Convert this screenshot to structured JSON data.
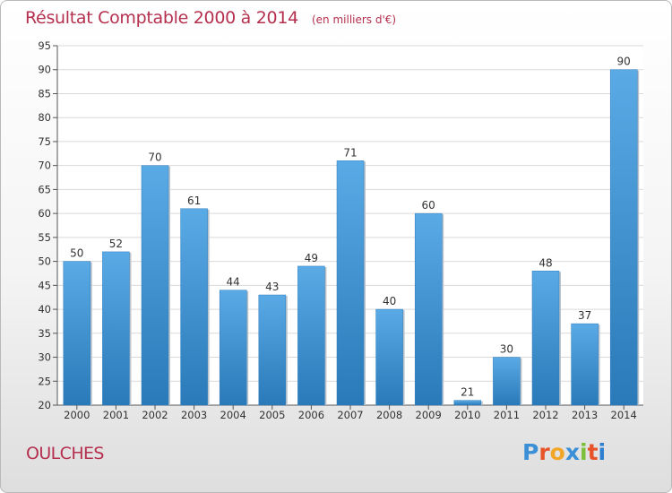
{
  "header": {
    "title": "Résultat Comptable 2000 à 2014",
    "unit": "(en milliers d'€)"
  },
  "footer": {
    "place": "OULCHES",
    "logo_text": "Proxiti"
  },
  "colors": {
    "title": "#b5304f",
    "bar_light": "#5aaae6",
    "bar_dark": "#2a79b8",
    "logo": [
      "#3b8fd6",
      "#e8542a",
      "#f2a628",
      "#3b8fd6",
      "#7bbf3a",
      "#e8542a",
      "#2e7fcf"
    ]
  },
  "chart_data": {
    "type": "bar",
    "title": "Résultat Comptable 2000 à 2014",
    "subtitle": "(en milliers d'€)",
    "categories": [
      "2000",
      "2001",
      "2002",
      "2003",
      "2004",
      "2005",
      "2006",
      "2007",
      "2008",
      "2009",
      "2010",
      "2011",
      "2012",
      "2013",
      "2014"
    ],
    "values": [
      50,
      52,
      70,
      61,
      44,
      43,
      49,
      71,
      40,
      60,
      21,
      30,
      48,
      37,
      90
    ],
    "ylim": [
      20,
      95
    ],
    "yticks": [
      20,
      25,
      30,
      35,
      40,
      45,
      50,
      55,
      60,
      65,
      70,
      75,
      80,
      85,
      90,
      95
    ],
    "grid": true,
    "data_labels": true
  }
}
